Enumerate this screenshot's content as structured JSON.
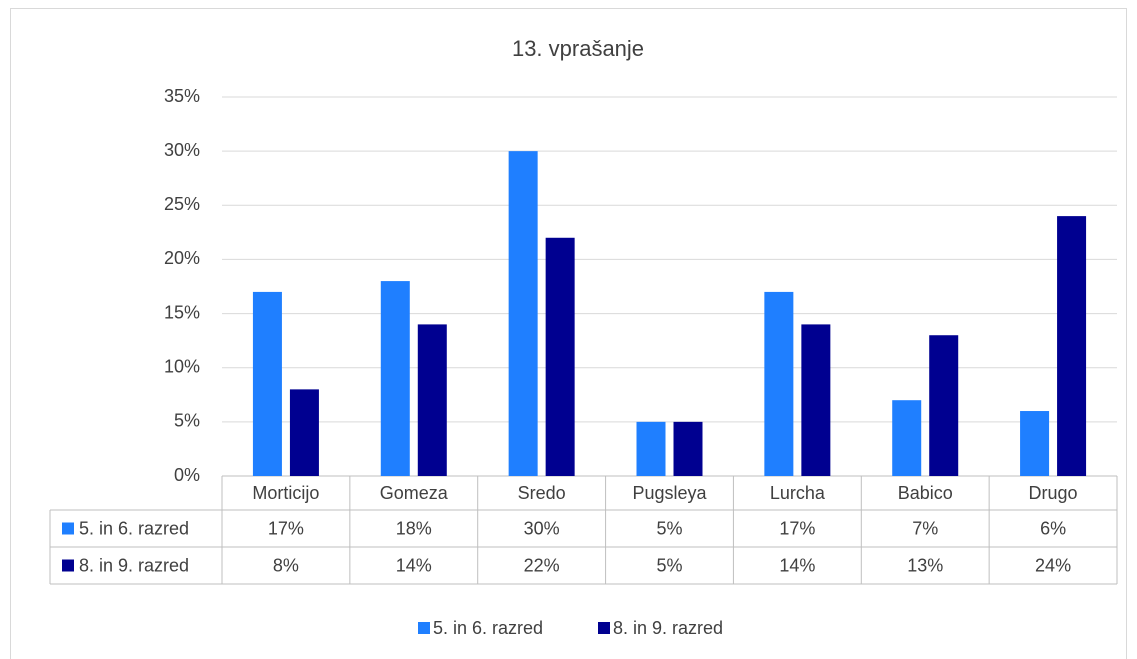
{
  "chart_data": {
    "type": "bar",
    "title": "13. vprašanje",
    "categories": [
      "Morticijo",
      "Gomeza",
      "Sredo",
      "Pugsleya",
      "Lurcha",
      "Babico",
      "Drugo"
    ],
    "series": [
      {
        "name": "5. in 6. razred",
        "color": "#1f7fff",
        "values": [
          17,
          18,
          30,
          5,
          17,
          7,
          6
        ],
        "value_labels": [
          "17%",
          "18%",
          "30%",
          "5%",
          "17%",
          "7%",
          "6%"
        ]
      },
      {
        "name": "8. in 9. razred",
        "color": "#000090",
        "values": [
          8,
          14,
          22,
          5,
          14,
          13,
          24
        ],
        "value_labels": [
          "8%",
          "14%",
          "22%",
          "5%",
          "14%",
          "13%",
          "24%"
        ]
      }
    ],
    "ylim": [
      0,
      35
    ],
    "yticks": [
      {
        "value": 0,
        "label": "0%"
      },
      {
        "value": 5,
        "label": "5%"
      },
      {
        "value": 10,
        "label": "10%"
      },
      {
        "value": 15,
        "label": "15%"
      },
      {
        "value": 20,
        "label": "20%"
      },
      {
        "value": 25,
        "label": "25%"
      },
      {
        "value": 30,
        "label": "30%"
      },
      {
        "value": 35,
        "label": "35%"
      }
    ],
    "grid": true
  }
}
